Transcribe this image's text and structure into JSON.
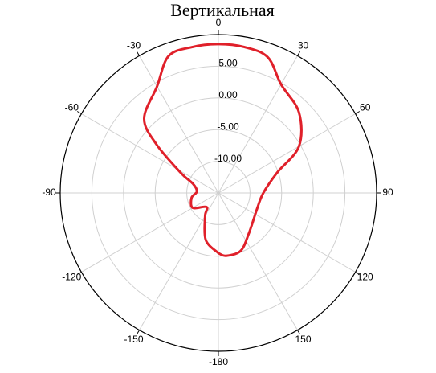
{
  "chart_data": {
    "type": "polar-line",
    "title": "Вертикальная",
    "theta": [
      -180,
      -165,
      -150,
      -140,
      -120,
      -100,
      -86,
      -70,
      -62,
      -52,
      -45,
      -30,
      -20,
      -10,
      0,
      10,
      20,
      30,
      45,
      60,
      71,
      90,
      112,
      143,
      159,
      173,
      180
    ],
    "series": [
      {
        "color": "#e0202a",
        "values": [
          -5.5,
          -7.3,
          -10.8,
          -12.1,
          -10.3,
          -10.7,
          -11.6,
          -10.7,
          -8.3,
          -2.6,
          1.6,
          4.4,
          8.0,
          8.4,
          8.5,
          8.4,
          7.8,
          4.8,
          3.0,
          -0.3,
          -5.2,
          -7.9,
          -8.4,
          -7.0,
          -5.2,
          -5.0,
          -5.5
        ]
      }
    ],
    "rlim": [
      -15,
      10
    ],
    "rticks": [
      {
        "value": -10,
        "label": "-10.00"
      },
      {
        "value": -5,
        "label": "-5.00"
      },
      {
        "value": 0,
        "label": "0.00"
      },
      {
        "value": 5,
        "label": "5.00"
      }
    ],
    "thetaticks": [
      0,
      30,
      60,
      90,
      120,
      150,
      -180,
      -150,
      -120,
      -90,
      -60,
      -30
    ],
    "grid": true
  }
}
